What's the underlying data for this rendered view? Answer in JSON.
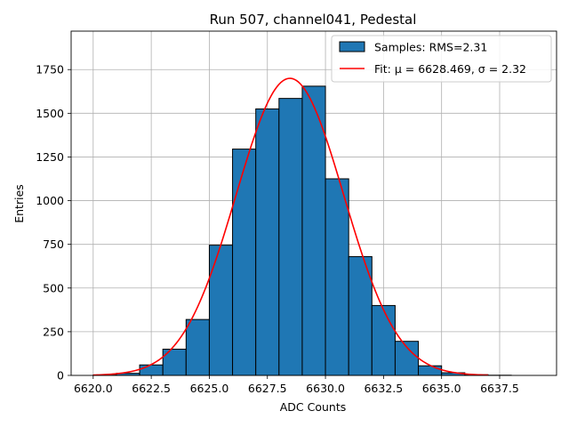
{
  "chart_data": {
    "type": "bar",
    "title": "Run 507, channel041, Pedestal",
    "xlabel": "ADC Counts",
    "ylabel": "Entries",
    "xlim": [
      6619.05,
      6639.95
    ],
    "ylim": [
      0,
      1970
    ],
    "grid": true,
    "legend_position": "top-right",
    "x_ticks": [
      "6620.0",
      "6622.5",
      "6625.0",
      "6627.5",
      "6630.0",
      "6632.5",
      "6635.0",
      "6637.5"
    ],
    "x_tick_values": [
      6620.0,
      6622.5,
      6625.0,
      6627.5,
      6630.0,
      6632.5,
      6635.0,
      6637.5
    ],
    "y_ticks": [
      "0",
      "250",
      "500",
      "750",
      "1000",
      "1250",
      "1500",
      "1750"
    ],
    "y_tick_values": [
      0,
      250,
      500,
      750,
      1000,
      1250,
      1500,
      1750
    ],
    "histogram": {
      "name": "Samples: RMS=2.31",
      "color": "#1f77b4",
      "bin_width": 1,
      "bin_edges_left": [
        6620,
        6621,
        6622,
        6623,
        6624,
        6625,
        6626,
        6627,
        6628,
        6629,
        6630,
        6631,
        6632,
        6633,
        6634,
        6635,
        6636,
        6637
      ],
      "counts": [
        2,
        12,
        60,
        150,
        320,
        745,
        1295,
        1525,
        1585,
        1655,
        1125,
        680,
        400,
        195,
        55,
        15,
        4,
        1
      ]
    },
    "fit": {
      "name": "Fit: μ = 6628.469, σ = 2.32",
      "color": "#ff0000",
      "type": "gaussian",
      "mu": 6628.469,
      "sigma": 2.32,
      "amplitude": 1700,
      "x_range": [
        6620,
        6637
      ]
    }
  }
}
